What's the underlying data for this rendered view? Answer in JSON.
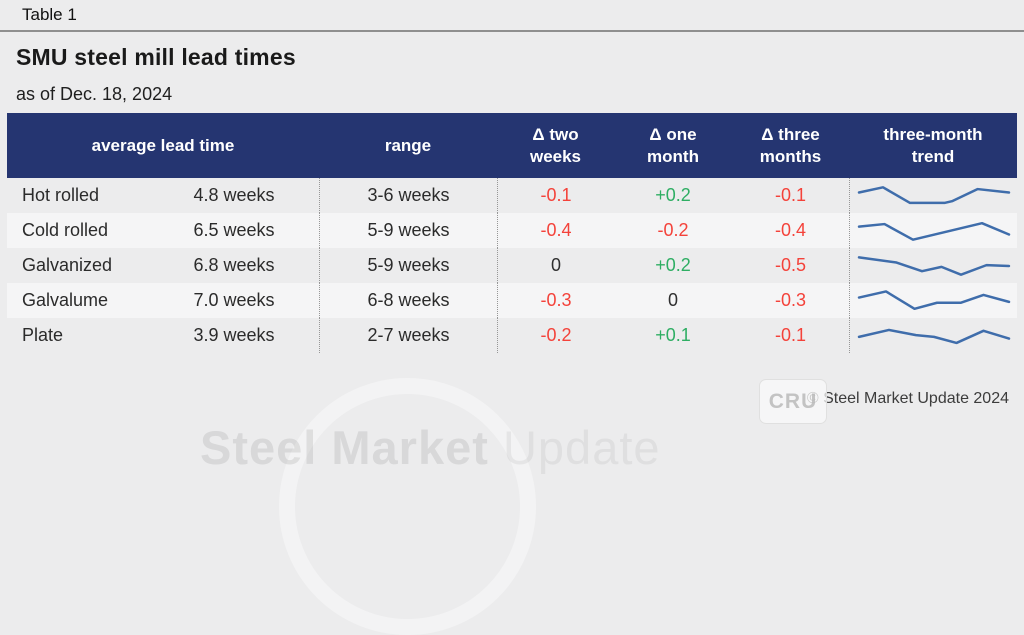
{
  "page": {
    "table_tag": "Table 1",
    "title": "SMU steel mill lead times",
    "subtitle": "as of Dec. 18, 2024",
    "copyright": "© Steel Market Update 2024"
  },
  "colors": {
    "page_bg": "#ececed",
    "stripe": "#f5f5f6",
    "header_bg": "#253571",
    "header_text": "#ffffff",
    "negative": "#f4423a",
    "positive": "#2eae63",
    "neutral": "#2f2f2f",
    "sparkline": "#3f6dab"
  },
  "watermark": {
    "brand_bold": "Steel Market",
    "brand_light": "Update",
    "cru_label": "CRU"
  },
  "chart_data": {
    "type": "table",
    "title": "SMU steel mill lead times",
    "as_of": "Dec. 18, 2024",
    "columns": [
      {
        "lines": [
          "average lead time"
        ]
      },
      {
        "lines": [
          "range"
        ]
      },
      {
        "lines": [
          "Δ two",
          "weeks"
        ]
      },
      {
        "lines": [
          "Δ one",
          "month"
        ]
      },
      {
        "lines": [
          "Δ three",
          "months"
        ]
      },
      {
        "lines": [
          "three-month",
          "trend"
        ]
      }
    ],
    "rows": [
      {
        "label": "Hot rolled",
        "avg": "4.8 weeks",
        "range": "3-6 weeks",
        "delta_two_weeks": "-0.1",
        "delta_one_month": "+0.2",
        "delta_three_months": "-0.1",
        "trend": [
          [
            0,
            11
          ],
          [
            16,
            5
          ],
          [
            34,
            23
          ],
          [
            57,
            23
          ],
          [
            62,
            21
          ],
          [
            79,
            7
          ],
          [
            100,
            11
          ]
        ]
      },
      {
        "label": "Cold rolled",
        "avg": "6.5 weeks",
        "range": "5-9 weeks",
        "delta_two_weeks": "-0.4",
        "delta_one_month": "-0.2",
        "delta_three_months": "-0.4",
        "trend": [
          [
            0,
            10
          ],
          [
            17,
            7
          ],
          [
            36,
            25
          ],
          [
            82,
            6
          ],
          [
            100,
            19
          ]
        ]
      },
      {
        "label": "Galvanized",
        "avg": "6.8 weeks",
        "range": "5-9 weeks",
        "delta_two_weeks": "0",
        "delta_one_month": "+0.2",
        "delta_three_months": "-0.5",
        "trend": [
          [
            0,
            5
          ],
          [
            25,
            11
          ],
          [
            42,
            21
          ],
          [
            55,
            16
          ],
          [
            68,
            25
          ],
          [
            85,
            14
          ],
          [
            100,
            15
          ]
        ]
      },
      {
        "label": "Galvalume",
        "avg": "7.0 weeks",
        "range": "6-8 weeks",
        "delta_two_weeks": "-0.3",
        "delta_one_month": "0",
        "delta_three_months": "-0.3",
        "trend": [
          [
            0,
            11
          ],
          [
            18,
            4
          ],
          [
            37,
            24
          ],
          [
            52,
            17
          ],
          [
            68,
            17
          ],
          [
            83,
            8
          ],
          [
            100,
            16
          ]
        ]
      },
      {
        "label": "Plate",
        "avg": "3.9 weeks",
        "range": "2-7 weeks",
        "delta_two_weeks": "-0.2",
        "delta_one_month": "+0.1",
        "delta_three_months": "-0.1",
        "trend": [
          [
            0,
            16
          ],
          [
            20,
            8
          ],
          [
            38,
            14
          ],
          [
            50,
            16
          ],
          [
            65,
            23
          ],
          [
            83,
            9
          ],
          [
            100,
            18
          ]
        ]
      }
    ]
  }
}
